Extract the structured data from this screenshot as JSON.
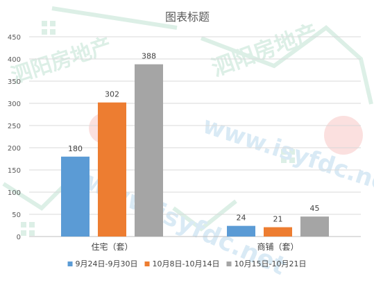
{
  "chart_data": {
    "type": "bar",
    "title": "图表标题",
    "categories": [
      "住宅（套）",
      "商铺（套）"
    ],
    "series": [
      {
        "name": "9月24日-9月30日",
        "values": [
          180,
          24
        ],
        "color": "#5b9bd5"
      },
      {
        "name": "10月8日-10月14日",
        "values": [
          302,
          21
        ],
        "color": "#ed7d31"
      },
      {
        "name": "10月15日-10月21日",
        "values": [
          388,
          45
        ],
        "color": "#a5a5a5"
      }
    ],
    "ylim": [
      0,
      450
    ],
    "yticks": [
      0,
      50,
      100,
      150,
      200,
      250,
      300,
      350,
      400,
      450
    ],
    "grid": true,
    "legend": "bottom",
    "data_labels": true
  },
  "watermark": {
    "text": "泗阳房地产 www.isyfdc.net"
  }
}
